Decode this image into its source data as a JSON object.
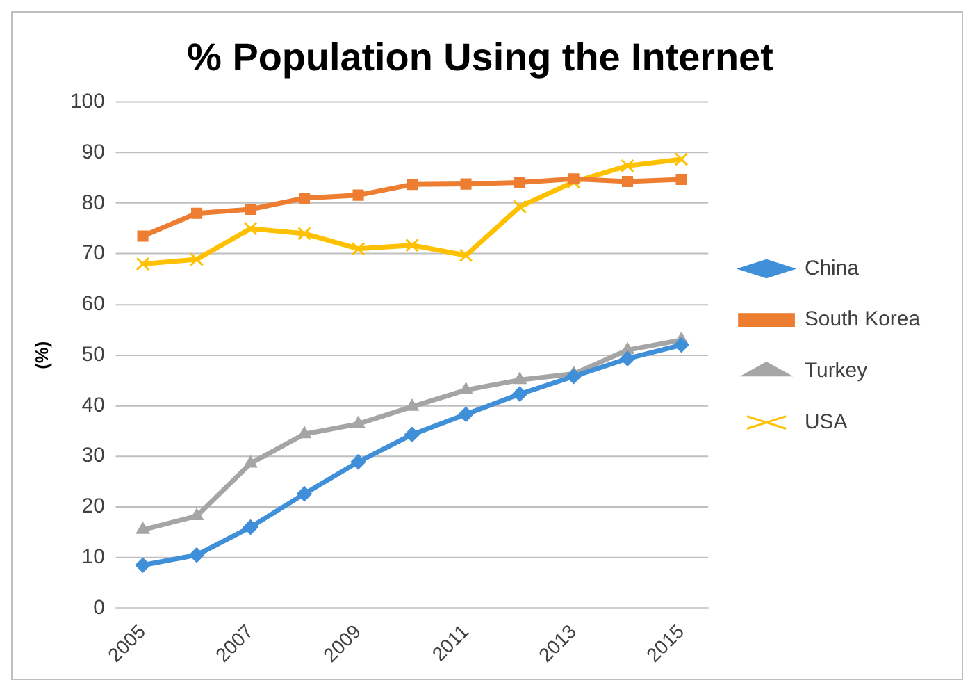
{
  "chart_data": {
    "type": "line",
    "title": "% Population Using the Internet",
    "ylabel": "(%)",
    "categories": [
      "2005",
      null,
      "2007",
      null,
      "2009",
      null,
      "2011",
      null,
      "2013",
      null,
      "2015"
    ],
    "series": [
      {
        "name": "China",
        "color": "#3f8fd9",
        "marker": "diamond",
        "values": [
          8.5,
          10.5,
          16,
          22.6,
          28.9,
          34.3,
          38.3,
          42.3,
          45.8,
          49.3,
          52
        ]
      },
      {
        "name": "South Korea",
        "color": "#ed7d31",
        "marker": "square",
        "values": [
          73.5,
          78,
          78.8,
          81,
          81.6,
          83.7,
          83.8,
          84.1,
          84.8,
          84.3,
          84.7
        ]
      },
      {
        "name": "Turkey",
        "color": "#a5a5a5",
        "marker": "triangle",
        "values": [
          15.5,
          18.2,
          28.6,
          34.4,
          36.4,
          39.8,
          43.1,
          45.1,
          46.3,
          51,
          53
        ]
      },
      {
        "name": "USA",
        "color": "#ffc000",
        "marker": "cross",
        "values": [
          68,
          68.9,
          75,
          74,
          71,
          71.7,
          69.7,
          79.3,
          84.2,
          87.4,
          88.7
        ]
      }
    ],
    "ylim": [
      0,
      100
    ],
    "yticks": [
      0,
      10,
      20,
      30,
      40,
      50,
      60,
      70,
      80,
      90,
      100
    ],
    "grid": "y",
    "legend": "right"
  }
}
